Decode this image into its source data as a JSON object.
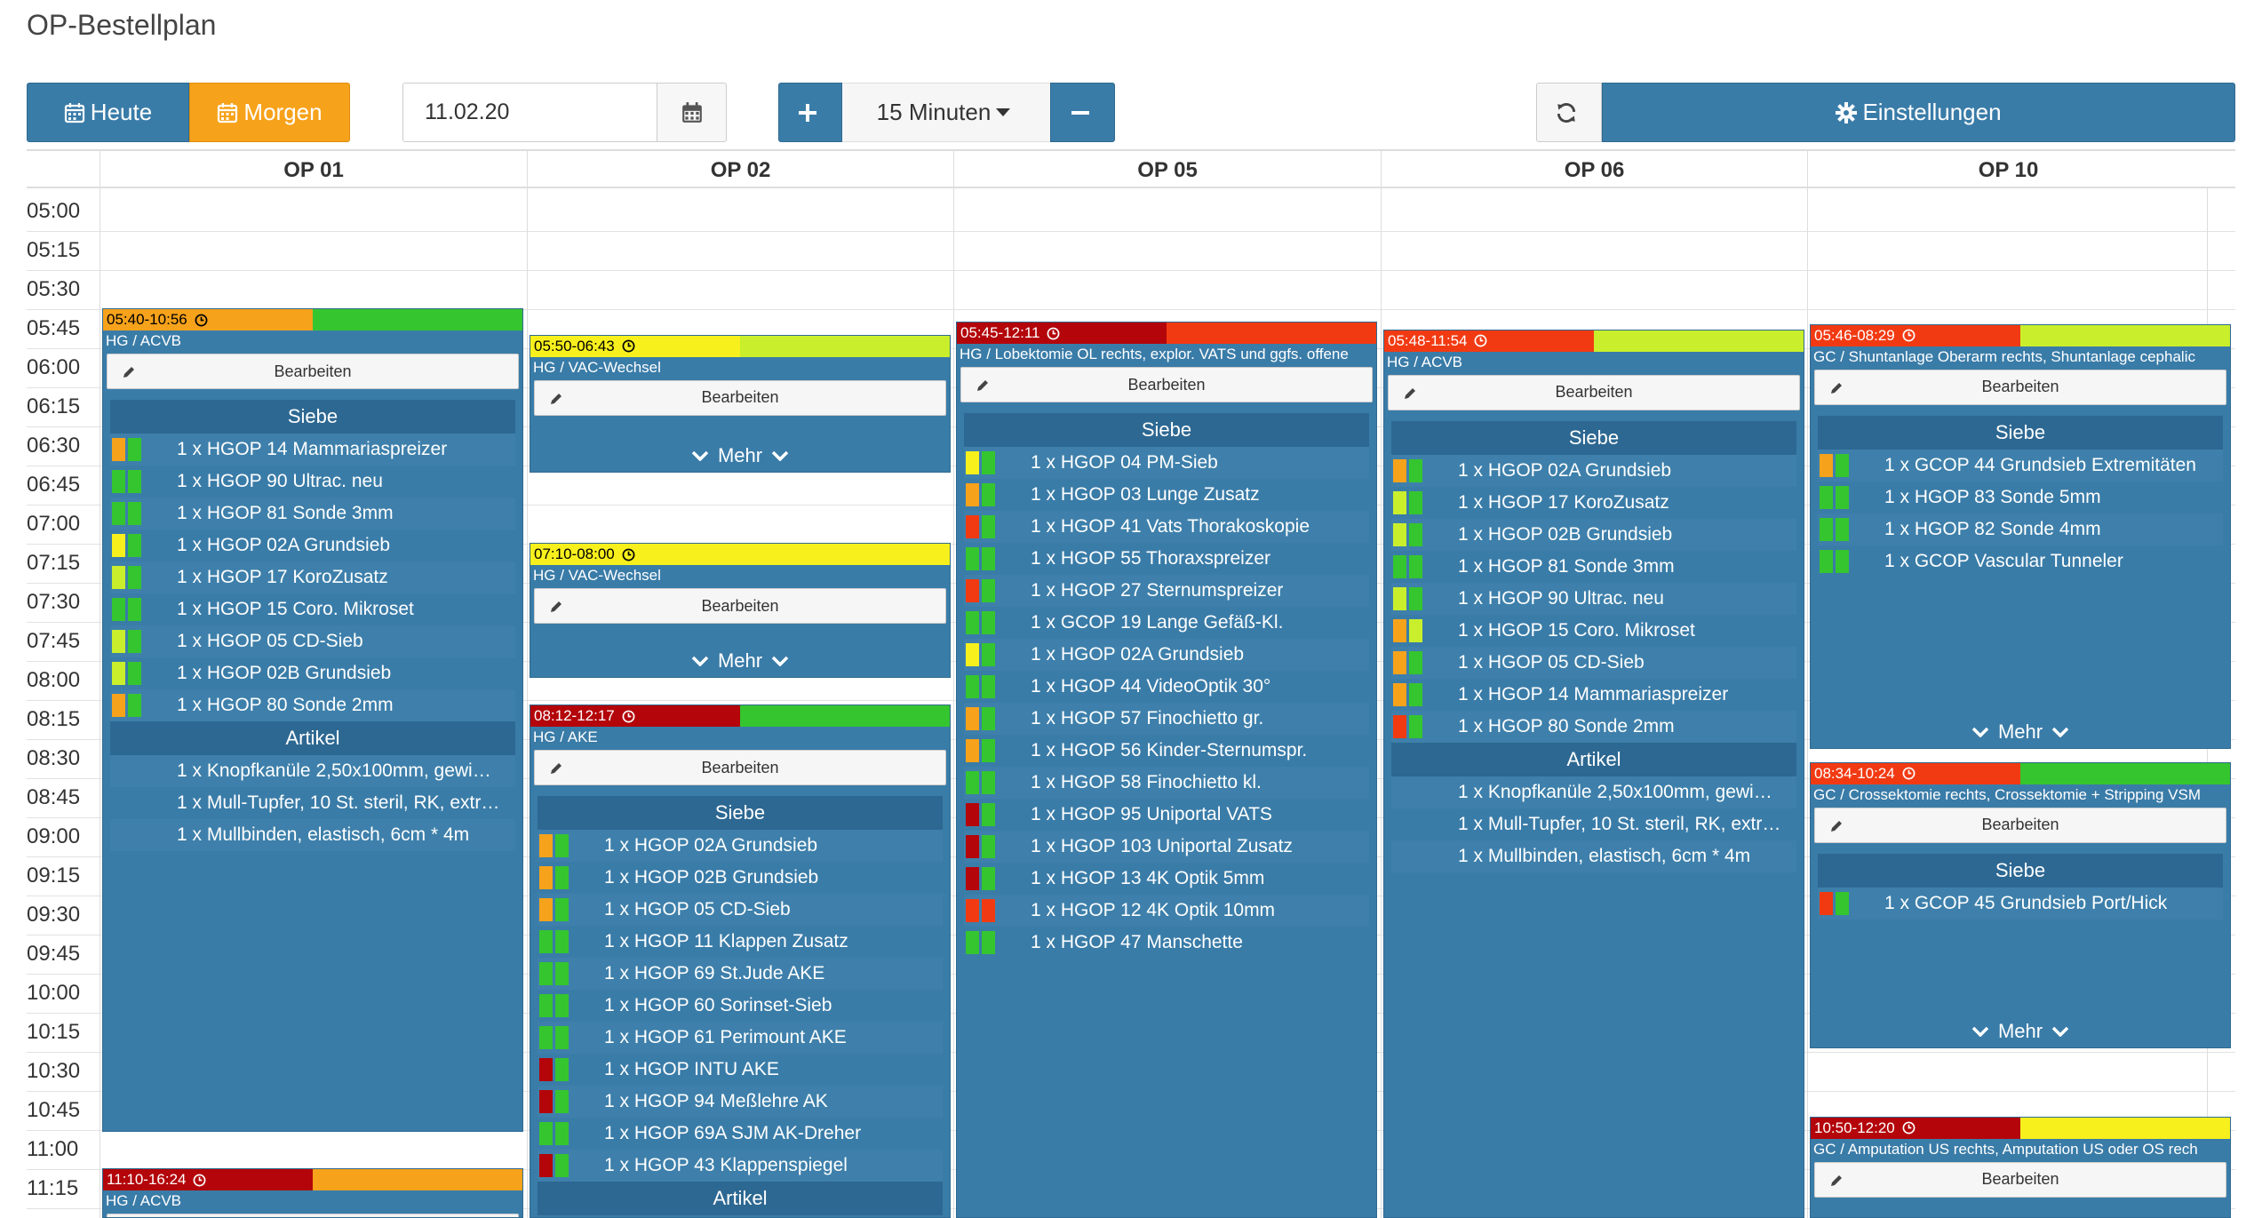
{
  "page": {
    "title": "OP-Bestellplan"
  },
  "toolbar": {
    "today_label": "Heute",
    "tomorrow_label": "Morgen",
    "date_value": "11.02.20",
    "interval_label": "15 Minuten",
    "settings_label": "Einstellungen"
  },
  "columns": [
    "OP 01",
    "OP 02",
    "OP 05",
    "OP 06",
    "OP 10"
  ],
  "times": [
    "05:00",
    "05:15",
    "05:30",
    "05:45",
    "06:00",
    "06:15",
    "06:30",
    "06:45",
    "07:00",
    "07:15",
    "07:30",
    "07:45",
    "08:00",
    "08:15",
    "08:30",
    "08:45",
    "09:00",
    "09:15",
    "09:30",
    "09:45",
    "10:00",
    "10:15",
    "10:30",
    "10:45",
    "11:00",
    "11:15"
  ],
  "labels": {
    "edit": "Bearbeiten",
    "siebe": "Siebe",
    "artikel": "Artikel",
    "mehr": "Mehr"
  },
  "colors": {
    "primary": "#3a7ca8",
    "orange": "#f7a21b",
    "green": "#35c52f",
    "lime": "#c9ef2c",
    "yellow": "#f7f01d",
    "red": "#f23a12",
    "darkred": "#b3050a"
  },
  "cards": [
    {
      "col": 0,
      "time": "05:40-10:56",
      "desc": "HG / ACVB",
      "bar": [
        "orange",
        "green"
      ],
      "siebe": [
        {
          "text": "1 x HGOP 14 Mammariaspreizer",
          "c": [
            "orange",
            "green"
          ]
        },
        {
          "text": "1 x HGOP 90 Ultrac. neu",
          "c": [
            "green",
            "green"
          ]
        },
        {
          "text": "1 x HGOP 81 Sonde 3mm",
          "c": [
            "green",
            "green"
          ]
        },
        {
          "text": "1 x HGOP 02A Grundsieb",
          "c": [
            "yellow",
            "green"
          ]
        },
        {
          "text": "1 x HGOP 17 KoroZusatz",
          "c": [
            "lime",
            "green"
          ]
        },
        {
          "text": "1 x HGOP 15 Coro. Mikroset",
          "c": [
            "green",
            "green"
          ]
        },
        {
          "text": "1 x HGOP 05 CD-Sieb",
          "c": [
            "lime",
            "green"
          ]
        },
        {
          "text": "1 x HGOP 02B Grundsieb",
          "c": [
            "lime",
            "green"
          ]
        },
        {
          "text": "1 x HGOP 80 Sonde 2mm",
          "c": [
            "orange",
            "green"
          ]
        }
      ],
      "artikel": [
        "1 x Knopfkanüle 2,50x100mm, gewi…",
        "1 x Mull-Tupfer, 10 St. steril, RK, extr…",
        "1 x Mullbinden, elastisch, 6cm * 4m"
      ]
    },
    {
      "col": 0,
      "time": "11:10-16:24",
      "desc": "HG / ACVB",
      "bar": [
        "darkred",
        "orange"
      ]
    },
    {
      "col": 1,
      "time": "05:50-06:43",
      "desc": "HG / VAC-Wechsel",
      "bar": [
        "yellow",
        "lime"
      ],
      "mehr": true
    },
    {
      "col": 1,
      "time": "07:10-08:00",
      "desc": "HG / VAC-Wechsel",
      "bar": [
        "yellow",
        "yellow"
      ],
      "mehr": true
    },
    {
      "col": 1,
      "time": "08:12-12:17",
      "desc": "HG / AKE",
      "bar": [
        "darkred",
        "green"
      ],
      "siebe": [
        {
          "text": "1 x HGOP 02A Grundsieb",
          "c": [
            "orange",
            "green"
          ]
        },
        {
          "text": "1 x HGOP 02B Grundsieb",
          "c": [
            "orange",
            "green"
          ]
        },
        {
          "text": "1 x HGOP 05 CD-Sieb",
          "c": [
            "orange",
            "green"
          ]
        },
        {
          "text": "1 x HGOP 11 Klappen Zusatz",
          "c": [
            "green",
            "green"
          ]
        },
        {
          "text": "1 x HGOP 69 St.Jude AKE",
          "c": [
            "green",
            "green"
          ]
        },
        {
          "text": "1 x HGOP 60 Sorinset-Sieb",
          "c": [
            "green",
            "green"
          ]
        },
        {
          "text": "1 x HGOP 61 Perimount AKE",
          "c": [
            "green",
            "green"
          ]
        },
        {
          "text": "1 x HGOP INTU AKE",
          "c": [
            "darkred",
            "green"
          ]
        },
        {
          "text": "1 x HGOP 94 Meßlehre AK",
          "c": [
            "darkred",
            "green"
          ]
        },
        {
          "text": "1 x HGOP 69A SJM AK-Dreher",
          "c": [
            "green",
            "green"
          ]
        },
        {
          "text": "1 x HGOP 43 Klappenspiegel",
          "c": [
            "darkred",
            "green"
          ]
        }
      ],
      "artikel_head_only": true
    },
    {
      "col": 2,
      "time": "05:45-12:11",
      "desc": "HG / Lobektomie OL rechts, explor. VATS und ggfs. offene",
      "bar": [
        "darkred",
        "red"
      ],
      "siebe": [
        {
          "text": "1 x HGOP 04 PM-Sieb",
          "c": [
            "yellow",
            "green"
          ]
        },
        {
          "text": "1 x HGOP 03 Lunge Zusatz",
          "c": [
            "orange",
            "green"
          ]
        },
        {
          "text": "1 x HGOP 41 Vats Thorakoskopie",
          "c": [
            "red",
            "green"
          ]
        },
        {
          "text": "1 x HGOP 55 Thoraxspreizer",
          "c": [
            "green",
            "green"
          ]
        },
        {
          "text": "1 x HGOP 27 Sternumspreizer",
          "c": [
            "red",
            "green"
          ]
        },
        {
          "text": "1 x GCOP 19 Lange Gefäß-Kl.",
          "c": [
            "green",
            "green"
          ]
        },
        {
          "text": "1 x HGOP 02A Grundsieb",
          "c": [
            "yellow",
            "green"
          ]
        },
        {
          "text": "1 x HGOP 44 VideoOptik 30°",
          "c": [
            "green",
            "green"
          ]
        },
        {
          "text": "1 x HGOP 57 Finochietto gr.",
          "c": [
            "orange",
            "green"
          ]
        },
        {
          "text": "1 x HGOP 56 Kinder-Sternumspr.",
          "c": [
            "orange",
            "green"
          ]
        },
        {
          "text": "1 x HGOP 58 Finochietto kl.",
          "c": [
            "green",
            "green"
          ]
        },
        {
          "text": "1 x HGOP 95 Uniportal VATS",
          "c": [
            "darkred",
            "green"
          ]
        },
        {
          "text": "1 x HGOP 103 Uniportal Zusatz",
          "c": [
            "darkred",
            "green"
          ]
        },
        {
          "text": "1 x HGOP 13 4K Optik 5mm",
          "c": [
            "darkred",
            "green"
          ]
        },
        {
          "text": "1 x HGOP 12 4K Optik 10mm",
          "c": [
            "red",
            "red"
          ]
        },
        {
          "text": "1 x HGOP 47 Manschette",
          "c": [
            "green",
            "green"
          ]
        }
      ]
    },
    {
      "col": 3,
      "time": "05:48-11:54",
      "desc": "HG / ACVB",
      "bar": [
        "red",
        "lime"
      ],
      "siebe": [
        {
          "text": "1 x HGOP 02A Grundsieb",
          "c": [
            "orange",
            "green"
          ]
        },
        {
          "text": "1 x HGOP 17 KoroZusatz",
          "c": [
            "lime",
            "green"
          ]
        },
        {
          "text": "1 x HGOP 02B Grundsieb",
          "c": [
            "lime",
            "green"
          ]
        },
        {
          "text": "1 x HGOP 81 Sonde 3mm",
          "c": [
            "green",
            "green"
          ]
        },
        {
          "text": "1 x HGOP 90 Ultrac. neu",
          "c": [
            "lime",
            "green"
          ]
        },
        {
          "text": "1 x HGOP 15 Coro. Mikroset",
          "c": [
            "orange",
            "lime"
          ]
        },
        {
          "text": "1 x HGOP 05 CD-Sieb",
          "c": [
            "orange",
            "green"
          ]
        },
        {
          "text": "1 x HGOP 14 Mammariaspreizer",
          "c": [
            "orange",
            "green"
          ]
        },
        {
          "text": "1 x HGOP 80 Sonde 2mm",
          "c": [
            "red",
            "green"
          ]
        }
      ],
      "artikel": [
        "1 x Knopfkanüle 2,50x100mm, gewi…",
        "1 x Mull-Tupfer, 10 St. steril, RK, extr…",
        "1 x Mullbinden, elastisch, 6cm * 4m"
      ]
    },
    {
      "col": 4,
      "time": "05:46-08:29",
      "desc": "GC / Shuntanlage Oberarm rechts, Shuntanlage cephalic",
      "bar": [
        "red",
        "lime"
      ],
      "siebe": [
        {
          "text": "1 x GCOP 44 Grundsieb Extremitäten",
          "c": [
            "orange",
            "green"
          ]
        },
        {
          "text": "1 x HGOP 83 Sonde 5mm",
          "c": [
            "green",
            "green"
          ]
        },
        {
          "text": "1 x HGOP 82 Sonde 4mm",
          "c": [
            "green",
            "green"
          ]
        },
        {
          "text": "1 x GCOP Vascular Tunneler",
          "c": [
            "green",
            "green"
          ]
        }
      ],
      "mehr": true
    },
    {
      "col": 4,
      "time": "08:34-10:24",
      "desc": "GC / Crossektomie rechts, Crossektomie + Stripping VSM",
      "bar": [
        "red",
        "green"
      ],
      "siebe": [
        {
          "text": "1 x GCOP 45 Grundsieb Port/Hick",
          "c": [
            "red",
            "green"
          ]
        }
      ],
      "mehr": true
    },
    {
      "col": 4,
      "time": "10:50-12:20",
      "desc": "GC / Amputation US rechts, Amputation US oder OS rech",
      "bar": [
        "darkred",
        "yellow"
      ]
    }
  ]
}
